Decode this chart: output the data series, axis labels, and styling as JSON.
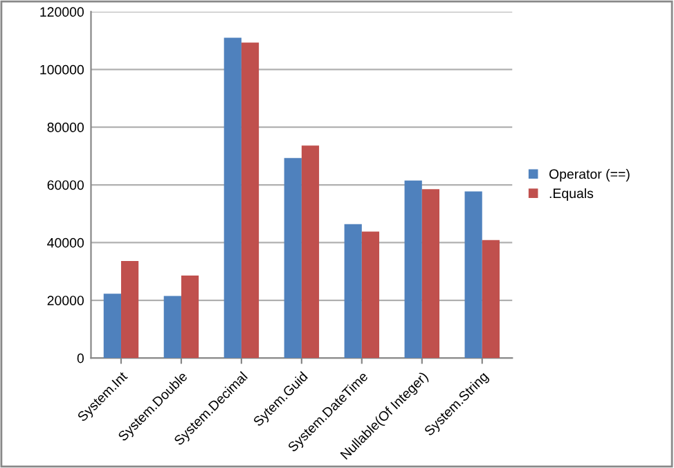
{
  "chart_data": {
    "type": "bar",
    "categories": [
      "System.Int",
      "System.Double",
      "System.Decimal",
      "Sytem.Guid",
      "System.DateTime",
      "Nullable(Of Integer)",
      "System.String"
    ],
    "series": [
      {
        "name": "Operator (==)",
        "color": "#4f81bd",
        "values": [
          22300,
          21500,
          111000,
          69300,
          46400,
          61500,
          57700
        ]
      },
      {
        "name": ".Equals",
        "color": "#c0504d",
        "values": [
          33600,
          28600,
          109300,
          73600,
          43800,
          58500,
          40900
        ]
      }
    ],
    "ylim": [
      0,
      120000
    ],
    "yticks": [
      0,
      20000,
      40000,
      60000,
      80000,
      100000,
      120000
    ],
    "grid": "y",
    "legend": "right"
  }
}
